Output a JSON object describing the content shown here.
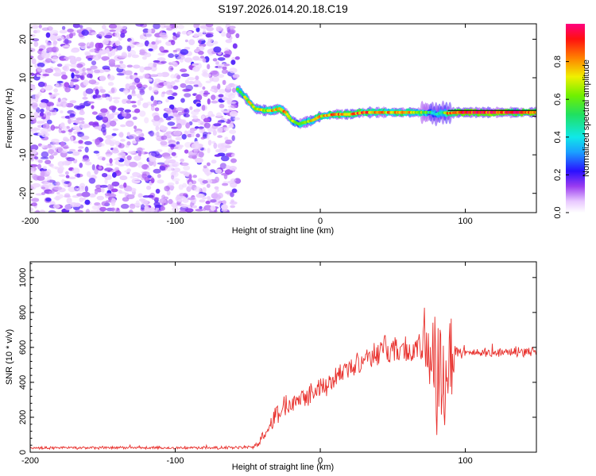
{
  "figure": {
    "title": "S197.2026.014.20.18.C19"
  },
  "chart_data": [
    {
      "type": "heatmap",
      "xlabel": "Height of straight line (km)",
      "ylabel": "Frequency (Hz)",
      "xlim": [
        -200,
        149
      ],
      "ylim": [
        -25,
        24
      ],
      "xticks": [
        -200,
        -100,
        0,
        100
      ],
      "yticks": [
        -20,
        -10,
        0,
        10,
        20
      ],
      "colorbar": {
        "label": "Normalized spectral amplitude",
        "range": [
          0,
          1
        ],
        "ticks": [
          0.0,
          0.2,
          0.4,
          0.6,
          0.8
        ]
      },
      "noise_region": {
        "x_from": -200,
        "x_to": -57
      },
      "ridge": {
        "x": [
          -57,
          -52,
          -45,
          -38,
          -33,
          -28,
          -24,
          -20,
          -15,
          -10,
          -5,
          0,
          10,
          20,
          30,
          40,
          50,
          60,
          70,
          76,
          80,
          84,
          88,
          95,
          110,
          130,
          149
        ],
        "freq": [
          7,
          5,
          2,
          1.5,
          1.5,
          2,
          1,
          -1,
          -2,
          -1.5,
          -1,
          0,
          0.5,
          0.5,
          1,
          1,
          1,
          1,
          1,
          1,
          0.5,
          1,
          0.8,
          1,
          1,
          1,
          1
        ],
        "amp": [
          0.55,
          0.7,
          0.75,
          0.7,
          0.8,
          0.85,
          0.8,
          0.7,
          0.6,
          0.7,
          0.75,
          0.8,
          0.85,
          0.85,
          0.9,
          0.85,
          0.8,
          0.85,
          0.7,
          0.5,
          0.45,
          0.55,
          0.9,
          1.0,
          1.0,
          1.0,
          0.95
        ]
      }
    },
    {
      "type": "line",
      "xlabel": "Height of straight line (km)",
      "ylabel": "SNR (10 * v/v)",
      "xlim": [
        -200,
        149
      ],
      "ylim": [
        0,
        1090
      ],
      "xticks": [
        -200,
        -100,
        0,
        100
      ],
      "yticks": [
        0,
        200,
        400,
        600,
        800,
        1000
      ],
      "series": [
        {
          "name": "SNR",
          "color": "#e8302c",
          "envelope": {
            "x": [
              -200,
              -60,
              -45,
              -35,
              -30,
              -20,
              -10,
              0,
              10,
              20,
              30,
              40,
              50,
              60,
              70,
              75,
              80,
              85,
              90,
              93,
              100,
              120,
              149
            ],
            "mean": [
              25,
              25,
              30,
              150,
              220,
              300,
              330,
              370,
              420,
              480,
              540,
              580,
              590,
              580,
              590,
              600,
              450,
              500,
              550,
              580,
              570,
              570,
              575
            ],
            "spread": [
              10,
              10,
              15,
              60,
              70,
              80,
              80,
              70,
              80,
              80,
              80,
              90,
              110,
              100,
              100,
              350,
              480,
              450,
              400,
              60,
              30,
              30,
              30
            ]
          }
        }
      ]
    }
  ]
}
